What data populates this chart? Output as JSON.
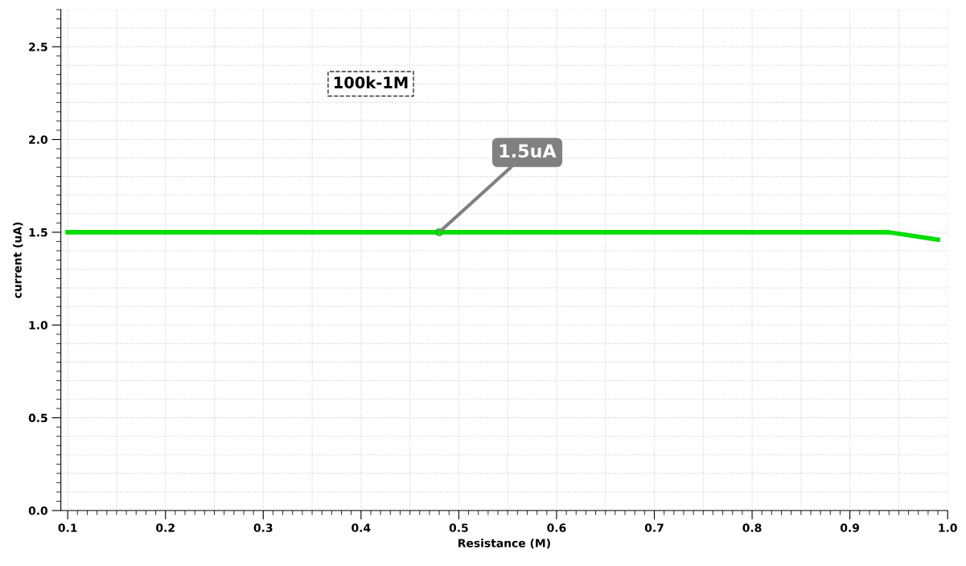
{
  "chart_data": {
    "type": "line",
    "xlabel": "Resistance (M)",
    "ylabel": "current (uA)",
    "x": [
      0.1,
      0.94,
      0.99
    ],
    "series": [
      {
        "color": "#00dd00",
        "values": [
          1.5,
          1.5,
          1.46
        ]
      }
    ],
    "xlim": [
      0.093,
      1.0
    ],
    "ylim": [
      0,
      2.7
    ],
    "xticks": [
      {
        "value": 0.1,
        "label": "0.1"
      },
      {
        "value": 0.2,
        "label": "0.2"
      },
      {
        "value": 0.3,
        "label": "0.3"
      },
      {
        "value": 0.4,
        "label": "0.4"
      },
      {
        "value": 0.5,
        "label": "0.5"
      },
      {
        "value": 0.6,
        "label": "0.6"
      },
      {
        "value": 0.7,
        "label": "0.7"
      },
      {
        "value": 0.8,
        "label": "0.8"
      },
      {
        "value": 0.9,
        "label": "0.9"
      },
      {
        "value": 1.0,
        "label": "1.0"
      }
    ],
    "yticks": [
      {
        "value": 0,
        "label": "0.0"
      },
      {
        "value": 0.5,
        "label": "0.5"
      },
      {
        "value": 1.0,
        "label": "1.0"
      },
      {
        "value": 1.5,
        "label": "1.5"
      },
      {
        "value": 2.0,
        "label": "2.0"
      },
      {
        "value": 2.5,
        "label": "2.5"
      }
    ],
    "grid": true,
    "marker": "none",
    "line_style": "solid",
    "annotations": [
      "100k-1M",
      {
        "text": "1.5uA",
        "x": 0.48,
        "y": 1.5
      }
    ]
  }
}
